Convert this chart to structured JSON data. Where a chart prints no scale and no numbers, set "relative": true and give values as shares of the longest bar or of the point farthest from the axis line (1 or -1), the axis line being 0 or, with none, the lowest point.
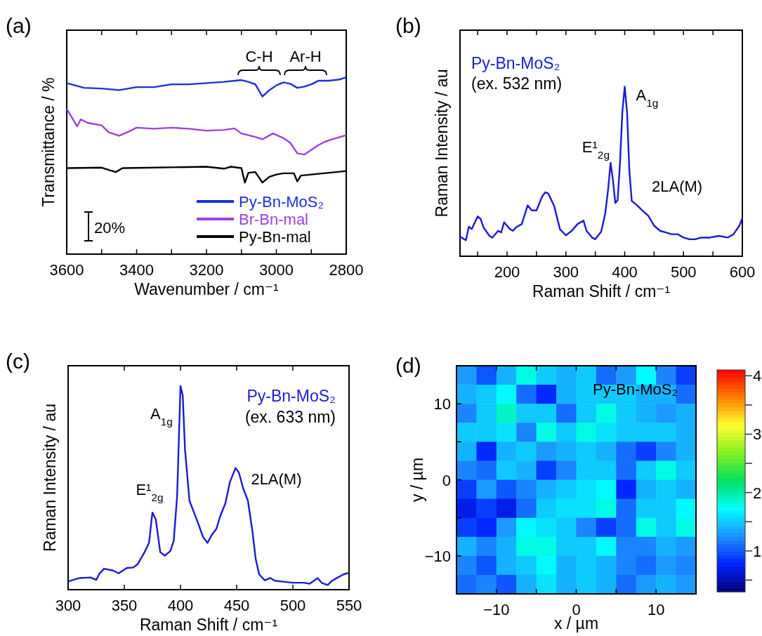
{
  "chart_data": [
    {
      "type": "line",
      "title": "(a)",
      "xlabel": "Wavenumber / cm⁻¹",
      "ylabel": "Transmittance / %",
      "relative": true,
      "legend": "bottom right",
      "xlim": [
        3600,
        2800
      ],
      "xticks": [
        3600,
        {
          "value": 3500,
          "label": null
        },
        3400,
        {
          "value": 3300,
          "label": null
        },
        3200,
        {
          "value": 3100,
          "label": null
        },
        3000,
        {
          "value": 2900,
          "label": null
        },
        2800
      ],
      "annotations": [
        "C-H",
        "Ar-H",
        "20%"
      ],
      "series": [
        {
          "name": "Py-Bn-MoS₂",
          "color": "#1a2fe0",
          "x": [
            3600,
            3550,
            3500,
            3450,
            3400,
            3350,
            3300,
            3250,
            3200,
            3150,
            3100,
            3080,
            3060,
            3040,
            3020,
            3000,
            2980,
            2960,
            2940,
            2920,
            2900,
            2880,
            2850,
            2820,
            2800
          ],
          "values": [
            0.967,
            0.94,
            0.936,
            0.927,
            0.944,
            0.944,
            0.96,
            0.96,
            0.967,
            0.974,
            0.984,
            0.974,
            0.96,
            0.891,
            0.927,
            0.954,
            0.971,
            0.963,
            0.94,
            0.947,
            0.96,
            0.98,
            0.98,
            0.987,
            1
          ]
        },
        {
          "name": "Br-Bn-mal",
          "color": "#9b3fe6",
          "x": [
            3600,
            3590,
            3570,
            3560,
            3540,
            3500,
            3480,
            3450,
            3420,
            3400,
            3350,
            3300,
            3250,
            3200,
            3150,
            3120,
            3100,
            3060,
            3040,
            3010,
            2980,
            2960,
            2940,
            2920,
            2900,
            2880,
            2860,
            2840,
            2800
          ],
          "values": [
            0.821,
            0.788,
            0.722,
            0.762,
            0.742,
            0.728,
            0.689,
            0.669,
            0.695,
            0.715,
            0.709,
            0.715,
            0.709,
            0.698,
            0.702,
            0.711,
            0.682,
            0.662,
            0.649,
            0.682,
            0.656,
            0.629,
            0.57,
            0.563,
            0.589,
            0.616,
            0.636,
            0.649,
            0.672
          ]
        },
        {
          "name": "Py-Bn-mal",
          "color": "#000000",
          "x": [
            3600,
            3500,
            3460,
            3440,
            3200,
            3150,
            3130,
            3100,
            3090,
            3080,
            3060,
            3040,
            3020,
            3000,
            2980,
            2950,
            2940,
            2930,
            2900,
            2850,
            2800
          ],
          "values": [
            0.486,
            0.489,
            0.464,
            0.486,
            0.494,
            0.483,
            0.494,
            0.486,
            0.404,
            0.46,
            0.464,
            0.404,
            0.437,
            0.45,
            0.457,
            0.457,
            0.411,
            0.444,
            0.45,
            0.46,
            0.47
          ]
        }
      ]
    },
    {
      "type": "line",
      "title": "(b)",
      "subtitle": "(ex. 532 nm)",
      "xlabel": "Raman Shift / cm⁻¹",
      "ylabel": "Raman Intensity / au",
      "relative": true,
      "xlim": [
        120,
        600
      ],
      "xticks": [
        {
          "value": 150,
          "label": null
        },
        200,
        {
          "value": 250,
          "label": null
        },
        300,
        {
          "value": 350,
          "label": null
        },
        400,
        {
          "value": 450,
          "label": null
        },
        500,
        {
          "value": 550,
          "label": null
        },
        600
      ],
      "annotations": [
        {
          "text": "A$_{1g}$",
          "x": 400,
          "y": 1
        },
        {
          "text": "E¹$_{2g}$",
          "x": 376,
          "y": 0.55
        },
        {
          "text": "2LA(M)",
          "x": 440,
          "y": 0.24
        }
      ],
      "series": [
        {
          "name": "Py-Bn-MoS₂",
          "color": "#1a1ad6",
          "x": [
            120,
            130,
            135,
            140,
            150,
            155,
            160,
            170,
            175,
            185,
            190,
            195,
            205,
            210,
            215,
            225,
            235,
            242,
            250,
            260,
            265,
            270,
            280,
            290,
            300,
            310,
            320,
            330,
            335,
            345,
            350,
            360,
            367,
            372,
            376,
            380,
            384,
            388,
            392,
            396,
            400,
            404,
            408,
            412,
            420,
            430,
            440,
            450,
            460,
            470,
            480,
            490,
            500,
            510,
            520,
            530,
            545,
            560,
            575,
            585,
            595,
            600
          ],
          "values": [
            0.116,
            0.094,
            0.174,
            0.16,
            0.235,
            0.22,
            0.17,
            0.12,
            0.11,
            0.15,
            0.14,
            0.2,
            0.16,
            0.15,
            0.17,
            0.19,
            0.3,
            0.27,
            0.27,
            0.355,
            0.377,
            0.37,
            0.297,
            0.159,
            0.123,
            0.15,
            0.19,
            0.21,
            0.15,
            0.109,
            0.1,
            0.145,
            0.254,
            0.4,
            0.551,
            0.45,
            0.314,
            0.33,
            0.55,
            0.85,
            1,
            0.85,
            0.5,
            0.326,
            0.304,
            0.27,
            0.239,
            0.18,
            0.15,
            0.14,
            0.13,
            0.13,
            0.11,
            0.1,
            0.1,
            0.11,
            0.11,
            0.12,
            0.11,
            0.13,
            0.18,
            0.225
          ]
        }
      ]
    },
    {
      "type": "line",
      "title": "(c)",
      "subtitle": "(ex. 633 nm)",
      "xlabel": "Raman Shift / cm⁻¹",
      "ylabel": "Raman Intensity / au",
      "relative": true,
      "xlim": [
        300,
        550
      ],
      "xticks": [
        300,
        350,
        400,
        450,
        500,
        550
      ],
      "annotations": [
        {
          "text": "A$_{1g}$",
          "x": 400,
          "y": 1
        },
        {
          "text": "E¹$_{2g}$",
          "x": 375,
          "y": 0.379
        },
        {
          "text": "2LA(M)",
          "x": 449,
          "y": 0.598
        }
      ],
      "series": [
        {
          "name": "Py-Bn-MoS₂",
          "color": "#1a1ad6",
          "x": [
            300,
            310,
            320,
            325,
            328,
            332,
            340,
            345,
            352,
            358,
            362,
            368,
            372,
            375,
            378,
            382,
            386,
            391,
            394,
            397,
            400,
            402,
            404,
            408,
            412,
            416,
            420,
            424,
            428,
            432,
            435,
            440,
            444,
            449,
            452,
            456,
            460,
            464,
            467,
            470,
            475,
            480,
            484,
            490,
            500,
            510,
            515,
            522,
            526,
            531,
            535,
            540,
            545,
            550
          ],
          "values": [
            0.04,
            0.057,
            0.06,
            0.048,
            0.08,
            0.103,
            0.094,
            0.08,
            0.106,
            0.109,
            0.126,
            0.184,
            0.23,
            0.379,
            0.345,
            0.184,
            0.167,
            0.19,
            0.241,
            0.46,
            1,
            0.954,
            0.69,
            0.437,
            0.379,
            0.322,
            0.259,
            0.23,
            0.27,
            0.299,
            0.356,
            0.425,
            0.529,
            0.598,
            0.575,
            0.494,
            0.437,
            0.287,
            0.149,
            0.075,
            0.046,
            0.057,
            0.044,
            0.04,
            0.034,
            0.034,
            0.029,
            0.057,
            0.032,
            0.023,
            0.044,
            0.06,
            0.075,
            0.083
          ]
        }
      ]
    },
    {
      "type": "heatmap",
      "title": "(d)",
      "xlabel": "x / µm",
      "ylabel": "y / µm",
      "annotations": [
        "Py-Bn-MoS₂"
      ],
      "xlim": [
        -15,
        15
      ],
      "ylim": [
        -15,
        15
      ],
      "xticks": [
        {
          "value": -10,
          "label": "−10"
        },
        {
          "value": -5,
          "label": null
        },
        0,
        {
          "value": 5,
          "label": null
        },
        10
      ],
      "yticks": [
        {
          "value": -10,
          "label": "−10"
        },
        {
          "value": -5,
          "label": null
        },
        0,
        {
          "value": 5,
          "label": null
        },
        10
      ],
      "clim": [
        0.3,
        4.1
      ],
      "cticks": [
        {
          "value": 0.5,
          "label": null
        },
        1,
        {
          "value": 1.5,
          "label": null
        },
        2,
        {
          "value": 2.5,
          "label": null
        },
        3,
        {
          "value": 3.5,
          "label": null
        },
        4
      ],
      "x": [
        -13.75,
        -11.25,
        -8.75,
        -6.25,
        -3.75,
        -1.25,
        1.25,
        3.75,
        6.25,
        8.75,
        11.25,
        13.75
      ],
      "y": [
        13.75,
        11.25,
        8.75,
        6.25,
        3.75,
        1.25,
        -1.25,
        -3.75,
        -6.25,
        -8.75,
        -11.25,
        -13.75
      ],
      "cells": [
        [
          1.3,
          1.0,
          1.4,
          1.8,
          1.5,
          1.4,
          1.5,
          1.1,
          1.3,
          1.7,
          1.2,
          0.9
        ],
        [
          1.4,
          1.5,
          1.7,
          1.1,
          0.8,
          1.4,
          1.5,
          1.5,
          1.5,
          1.4,
          1.4,
          1.1
        ],
        [
          1.2,
          1.5,
          1.9,
          1.5,
          1.5,
          1.1,
          1.5,
          1.8,
          1.5,
          1.4,
          1.3,
          1.4
        ],
        [
          1.5,
          1.5,
          1.6,
          1.2,
          1.8,
          1.5,
          1.8,
          1.6,
          1.5,
          1.5,
          1.5,
          1.4
        ],
        [
          1.4,
          0.8,
          1.4,
          1.5,
          1.3,
          1.4,
          1.5,
          1.4,
          1.1,
          0.9,
          1.2,
          1.4
        ],
        [
          1.2,
          1.1,
          1.5,
          1.4,
          0.9,
          1.2,
          1.5,
          1.5,
          1.1,
          1.5,
          1.8,
          1.5
        ],
        [
          0.9,
          1.3,
          1.0,
          1.2,
          1.4,
          1.5,
          1.6,
          1.7,
          0.8,
          1.4,
          1.5,
          1.4
        ],
        [
          0.7,
          0.9,
          0.7,
          1.1,
          1.5,
          1.6,
          1.6,
          1.8,
          1.1,
          1.5,
          1.5,
          1.7
        ],
        [
          0.9,
          0.8,
          1.3,
          1.7,
          1.6,
          1.5,
          1.2,
          0.9,
          1.1,
          1.8,
          1.5,
          1.8
        ],
        [
          1.4,
          1.2,
          1.4,
          1.8,
          1.8,
          1.5,
          1.5,
          1.7,
          1.2,
          1.2,
          1.4,
          1.3
        ],
        [
          1.2,
          1.0,
          1.4,
          1.5,
          1.7,
          1.4,
          1.5,
          1.4,
          1.2,
          1.1,
          1.3,
          1.2
        ],
        [
          1.1,
          1.2,
          1.0,
          1.4,
          1.6,
          1.4,
          1.5,
          1.4,
          1.1,
          1.3,
          1.4,
          1.3
        ]
      ]
    }
  ]
}
